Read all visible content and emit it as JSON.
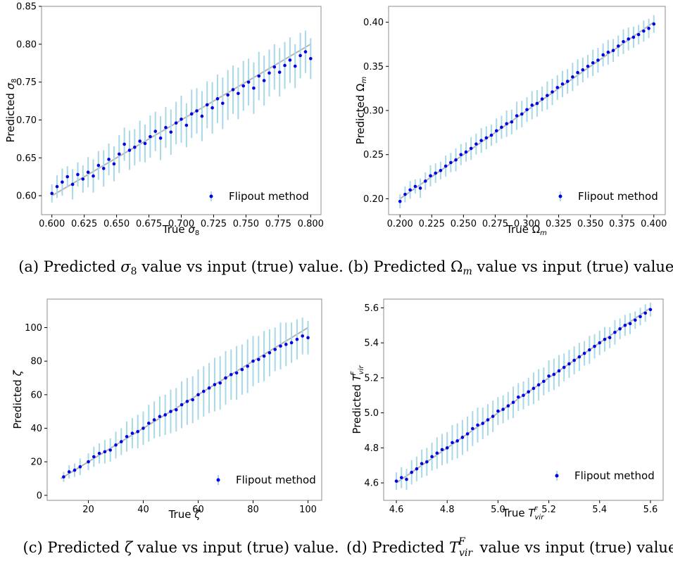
{
  "chart_data": [
    {
      "id": "a",
      "type": "scatter",
      "caption": "(a) Predicted σ8 value vs input (true) value.",
      "xlabel": "True σ8",
      "ylabel": "Predicted σ8",
      "xlim": [
        0.592,
        0.808
      ],
      "ylim": [
        0.575,
        0.85
      ],
      "xticks": [
        0.6,
        0.625,
        0.65,
        0.675,
        0.7,
        0.725,
        0.75,
        0.775,
        0.8
      ],
      "xtick_labels": [
        "0.600",
        "0.625",
        "0.650",
        "0.675",
        "0.700",
        "0.725",
        "0.750",
        "0.775",
        "0.800"
      ],
      "yticks": [
        0.6,
        0.65,
        0.7,
        0.75,
        0.8,
        0.85
      ],
      "ytick_labels": [
        "0.60",
        "0.65",
        "0.70",
        "0.75",
        "0.80",
        "0.85"
      ],
      "legend": {
        "label": "Flipout method",
        "position": "lower-right"
      },
      "identity_line": [
        [
          0.6,
          0.6
        ],
        [
          0.8,
          0.8
        ]
      ],
      "series": [
        {
          "name": "Flipout method",
          "x": [
            0.6,
            0.604,
            0.608,
            0.612,
            0.616,
            0.62,
            0.624,
            0.628,
            0.632,
            0.636,
            0.64,
            0.644,
            0.648,
            0.652,
            0.656,
            0.66,
            0.664,
            0.668,
            0.672,
            0.676,
            0.68,
            0.684,
            0.688,
            0.692,
            0.696,
            0.7,
            0.704,
            0.708,
            0.712,
            0.716,
            0.72,
            0.724,
            0.728,
            0.732,
            0.736,
            0.74,
            0.744,
            0.748,
            0.752,
            0.756,
            0.76,
            0.764,
            0.768,
            0.772,
            0.776,
            0.78,
            0.784,
            0.788,
            0.792,
            0.796,
            0.8
          ],
          "y": [
            0.603,
            0.612,
            0.618,
            0.625,
            0.615,
            0.628,
            0.622,
            0.631,
            0.626,
            0.64,
            0.636,
            0.648,
            0.642,
            0.655,
            0.668,
            0.66,
            0.664,
            0.672,
            0.669,
            0.678,
            0.685,
            0.676,
            0.69,
            0.684,
            0.696,
            0.701,
            0.693,
            0.708,
            0.712,
            0.705,
            0.72,
            0.716,
            0.728,
            0.722,
            0.733,
            0.74,
            0.735,
            0.745,
            0.75,
            0.742,
            0.758,
            0.752,
            0.762,
            0.77,
            0.763,
            0.772,
            0.779,
            0.771,
            0.785,
            0.79,
            0.781
          ],
          "yerr": [
            0.012,
            0.015,
            0.018,
            0.014,
            0.02,
            0.016,
            0.018,
            0.02,
            0.022,
            0.019,
            0.024,
            0.021,
            0.023,
            0.025,
            0.022,
            0.026,
            0.024,
            0.027,
            0.025,
            0.028,
            0.026,
            0.029,
            0.027,
            0.03,
            0.028,
            0.031,
            0.029,
            0.032,
            0.03,
            0.033,
            0.031,
            0.034,
            0.032,
            0.034,
            0.033,
            0.032,
            0.034,
            0.033,
            0.031,
            0.034,
            0.032,
            0.033,
            0.031,
            0.03,
            0.032,
            0.031,
            0.03,
            0.029,
            0.03,
            0.028,
            0.027
          ]
        }
      ]
    },
    {
      "id": "b",
      "type": "scatter",
      "caption": "(b) Predicted Ωm value vs input (true) value.",
      "xlabel": "True Ωm",
      "ylabel": "Predicted Ωm",
      "xlim": [
        0.191,
        0.409
      ],
      "ylim": [
        0.182,
        0.418
      ],
      "xticks": [
        0.2,
        0.225,
        0.25,
        0.275,
        0.3,
        0.325,
        0.35,
        0.375,
        0.4
      ],
      "xtick_labels": [
        "0.200",
        "0.225",
        "0.250",
        "0.275",
        "0.300",
        "0.325",
        "0.350",
        "0.375",
        "0.400"
      ],
      "yticks": [
        0.2,
        0.25,
        0.3,
        0.35,
        0.4
      ],
      "ytick_labels": [
        "0.20",
        "0.25",
        "0.30",
        "0.35",
        "0.40"
      ],
      "legend": {
        "label": "Flipout method",
        "position": "lower-right"
      },
      "identity_line": [
        [
          0.2,
          0.2
        ],
        [
          0.4,
          0.4
        ]
      ],
      "series": [
        {
          "name": "Flipout method",
          "x": [
            0.2,
            0.204,
            0.208,
            0.212,
            0.216,
            0.22,
            0.224,
            0.228,
            0.232,
            0.236,
            0.24,
            0.244,
            0.248,
            0.252,
            0.256,
            0.26,
            0.264,
            0.268,
            0.272,
            0.276,
            0.28,
            0.284,
            0.288,
            0.292,
            0.296,
            0.3,
            0.304,
            0.308,
            0.312,
            0.316,
            0.32,
            0.324,
            0.328,
            0.332,
            0.336,
            0.34,
            0.344,
            0.348,
            0.352,
            0.356,
            0.36,
            0.364,
            0.368,
            0.372,
            0.376,
            0.38,
            0.384,
            0.388,
            0.392,
            0.396,
            0.4
          ],
          "y": [
            0.197,
            0.205,
            0.21,
            0.214,
            0.212,
            0.22,
            0.226,
            0.229,
            0.232,
            0.237,
            0.241,
            0.244,
            0.25,
            0.253,
            0.257,
            0.262,
            0.266,
            0.269,
            0.272,
            0.277,
            0.281,
            0.285,
            0.287,
            0.294,
            0.296,
            0.301,
            0.306,
            0.308,
            0.313,
            0.317,
            0.321,
            0.326,
            0.33,
            0.333,
            0.338,
            0.343,
            0.346,
            0.35,
            0.354,
            0.357,
            0.363,
            0.366,
            0.368,
            0.373,
            0.378,
            0.381,
            0.383,
            0.386,
            0.39,
            0.393,
            0.398
          ],
          "yerr": [
            0.008,
            0.009,
            0.01,
            0.008,
            0.011,
            0.01,
            0.012,
            0.011,
            0.01,
            0.012,
            0.011,
            0.013,
            0.012,
            0.011,
            0.013,
            0.012,
            0.014,
            0.013,
            0.012,
            0.014,
            0.013,
            0.015,
            0.014,
            0.016,
            0.015,
            0.014,
            0.016,
            0.015,
            0.014,
            0.016,
            0.015,
            0.014,
            0.015,
            0.014,
            0.016,
            0.015,
            0.014,
            0.013,
            0.015,
            0.014,
            0.013,
            0.014,
            0.013,
            0.012,
            0.014,
            0.013,
            0.012,
            0.011,
            0.012,
            0.011,
            0.01
          ]
        }
      ]
    },
    {
      "id": "c",
      "type": "scatter",
      "caption": "(c) Predicted ζ value vs input (true) value.",
      "xlabel": "True ζ",
      "ylabel": "Predicted ζ",
      "xlim": [
        5,
        105
      ],
      "ylim": [
        -3,
        117
      ],
      "xticks": [
        20,
        40,
        60,
        80,
        100
      ],
      "xtick_labels": [
        "20",
        "40",
        "60",
        "80",
        "100"
      ],
      "yticks": [
        0,
        20,
        40,
        60,
        80,
        100
      ],
      "ytick_labels": [
        "0",
        "20",
        "40",
        "60",
        "80",
        "100"
      ],
      "legend": {
        "label": "Flipout method",
        "position": "lower-right"
      },
      "identity_line": [
        [
          10,
          10
        ],
        [
          100,
          100
        ]
      ],
      "series": [
        {
          "name": "Flipout method",
          "x": [
            11,
            13,
            15,
            17,
            20,
            22,
            24,
            26,
            28,
            30,
            32,
            34,
            36,
            38,
            40,
            42,
            44,
            46,
            48,
            50,
            52,
            54,
            56,
            58,
            60,
            62,
            64,
            66,
            68,
            70,
            72,
            74,
            76,
            78,
            80,
            82,
            84,
            86,
            88,
            90,
            92,
            94,
            96,
            98,
            100
          ],
          "y": [
            11,
            14,
            15,
            17,
            20,
            23,
            25,
            26,
            27,
            30,
            32,
            35,
            37,
            38,
            40,
            43,
            45,
            47,
            48,
            50,
            51,
            54,
            56,
            57,
            60,
            62,
            64,
            66,
            67,
            70,
            72,
            73,
            75,
            77,
            80,
            81,
            83,
            85,
            87,
            89,
            90,
            91,
            93,
            95,
            94
          ],
          "yerr": [
            3,
            4,
            4,
            5,
            5,
            6,
            6,
            7,
            7,
            8,
            8,
            9,
            9,
            10,
            10,
            11,
            11,
            12,
            12,
            13,
            13,
            14,
            14,
            14,
            15,
            15,
            15,
            16,
            16,
            16,
            15,
            16,
            15,
            16,
            15,
            14,
            15,
            14,
            13,
            14,
            13,
            12,
            12,
            11,
            10
          ]
        }
      ]
    },
    {
      "id": "d",
      "type": "scatter",
      "caption": "(d) Predicted T_vir^F value vs input (true) value.",
      "xlabel": "True T_vir^F",
      "ylabel": "Predicted T_vir^F",
      "xlim": [
        4.55,
        5.65
      ],
      "ylim": [
        4.5,
        5.65
      ],
      "xticks": [
        4.6,
        4.8,
        5.0,
        5.2,
        5.4,
        5.6
      ],
      "xtick_labels": [
        "4.6",
        "4.8",
        "5.0",
        "5.2",
        "5.4",
        "5.6"
      ],
      "yticks": [
        4.6,
        4.8,
        5.0,
        5.2,
        5.4,
        5.6
      ],
      "ytick_labels": [
        "4.6",
        "4.8",
        "5.0",
        "5.2",
        "5.4",
        "5.6"
      ],
      "legend": {
        "label": "Flipout method",
        "position": "lower-right"
      },
      "identity_line": [
        [
          4.6,
          4.6
        ],
        [
          5.6,
          5.6
        ]
      ],
      "series": [
        {
          "name": "Flipout method",
          "x": [
            4.6,
            4.62,
            4.64,
            4.66,
            4.68,
            4.7,
            4.72,
            4.74,
            4.76,
            4.78,
            4.8,
            4.82,
            4.84,
            4.86,
            4.88,
            4.9,
            4.92,
            4.94,
            4.96,
            4.98,
            5.0,
            5.02,
            5.04,
            5.06,
            5.08,
            5.1,
            5.12,
            5.14,
            5.16,
            5.18,
            5.2,
            5.22,
            5.24,
            5.26,
            5.28,
            5.3,
            5.32,
            5.34,
            5.36,
            5.38,
            5.4,
            5.42,
            5.44,
            5.46,
            5.48,
            5.5,
            5.52,
            5.54,
            5.56,
            5.58,
            5.6
          ],
          "y": [
            4.61,
            4.63,
            4.62,
            4.66,
            4.68,
            4.71,
            4.72,
            4.75,
            4.77,
            4.79,
            4.8,
            4.83,
            4.84,
            4.86,
            4.88,
            4.91,
            4.93,
            4.94,
            4.96,
            4.98,
            5.01,
            5.02,
            5.04,
            5.06,
            5.09,
            5.1,
            5.12,
            5.14,
            5.16,
            5.18,
            5.21,
            5.22,
            5.24,
            5.26,
            5.28,
            5.3,
            5.32,
            5.34,
            5.36,
            5.38,
            5.4,
            5.42,
            5.43,
            5.46,
            5.48,
            5.5,
            5.51,
            5.53,
            5.55,
            5.57,
            5.59
          ],
          "yerr": [
            0.05,
            0.06,
            0.06,
            0.07,
            0.07,
            0.08,
            0.08,
            0.08,
            0.09,
            0.09,
            0.09,
            0.1,
            0.1,
            0.1,
            0.1,
            0.1,
            0.1,
            0.09,
            0.09,
            0.09,
            0.08,
            0.08,
            0.08,
            0.09,
            0.08,
            0.08,
            0.08,
            0.09,
            0.09,
            0.08,
            0.09,
            0.09,
            0.09,
            0.08,
            0.08,
            0.08,
            0.08,
            0.07,
            0.08,
            0.07,
            0.07,
            0.07,
            0.06,
            0.07,
            0.06,
            0.06,
            0.06,
            0.05,
            0.05,
            0.05,
            0.04
          ]
        }
      ]
    }
  ],
  "colors": {
    "points": "#0000e6",
    "errorbars": "#a8d8e8",
    "identity_line": "#b4b4b4",
    "frame": "#8c8c8c"
  }
}
